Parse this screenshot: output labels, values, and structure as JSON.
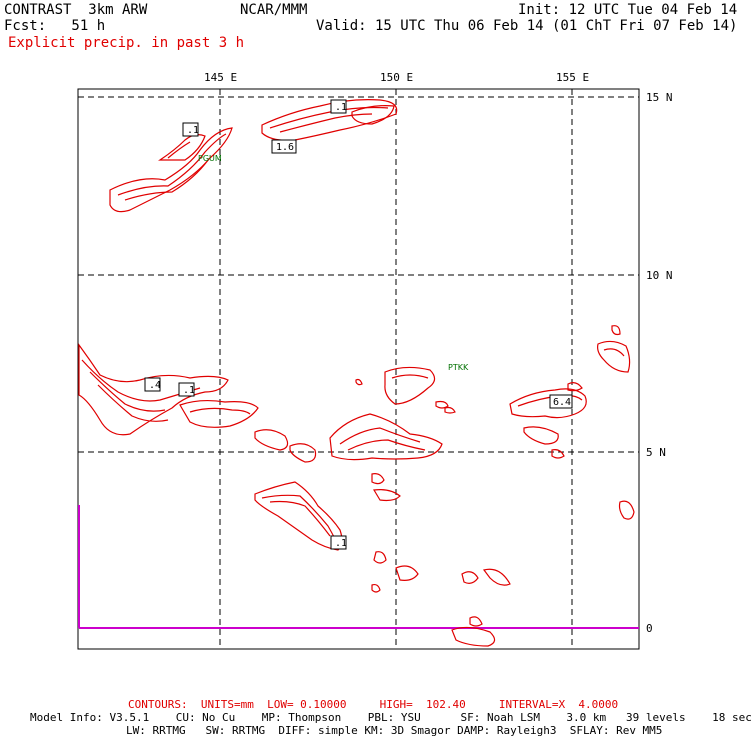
{
  "header": {
    "model": "CONTRAST  3km ARW",
    "fcst": "Fcst:   51 h",
    "product": "Explicit precip. in past 3 h",
    "center": "NCAR/MMM",
    "init": "Init: 12 UTC Tue 04 Feb 14",
    "valid": "Valid: 15 UTC Thu 06 Feb 14 (01 ChT Fri 07 Feb 14)"
  },
  "map": {
    "lon_labels": [
      "145 E",
      "150 E",
      "155 E"
    ],
    "lat_labels": [
      "15 N",
      "10 N",
      "5 N",
      "0"
    ],
    "stations": [
      "PGUM",
      "PTKK"
    ],
    "contour_labels": [
      ".1",
      "1.6",
      ".1",
      ".4",
      ".1",
      "6.4",
      ".1"
    ],
    "colors": {
      "precip": "#e00000",
      "station": "#007000",
      "equator_line": "#cc00cc",
      "grid": "#000000"
    }
  },
  "footer": {
    "contours": "CONTOURS:  UNITS=mm  LOW= 0.10000     HIGH=  102.40     INTERVAL=X  4.0000",
    "line1": "Model Info: V3.5.1    CU: No Cu    MP: Thompson    PBL: YSU      SF: Noah LSM    3.0 km   39 levels    18 sec",
    "line2": "LW: RRTMG   SW: RRTMG  DIFF: simple KM: 3D Smagor DAMP: Rayleigh3  SFLAY: Rev MM5"
  }
}
